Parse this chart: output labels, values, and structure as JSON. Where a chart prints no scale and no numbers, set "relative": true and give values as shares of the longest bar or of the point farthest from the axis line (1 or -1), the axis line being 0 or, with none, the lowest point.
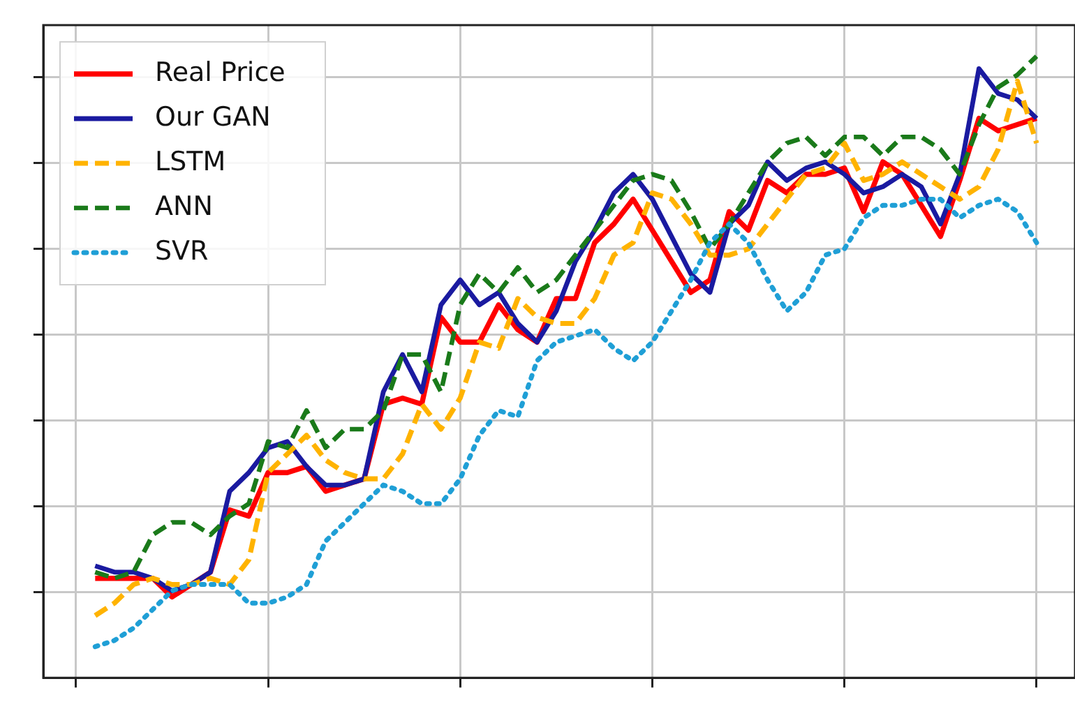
{
  "chart_data": {
    "type": "line",
    "relative": true,
    "grid": true,
    "legend": "top left",
    "marker": "none",
    "categories": [
      null,
      null,
      null,
      null,
      null,
      null,
      null,
      null,
      null,
      null,
      null,
      null,
      null,
      null,
      null,
      null,
      null,
      null,
      null,
      null,
      null,
      null,
      null,
      null,
      null,
      null,
      null,
      null,
      null,
      null,
      null,
      null,
      null,
      null,
      null,
      null,
      null,
      null,
      null,
      null,
      null,
      null,
      null,
      null,
      null,
      null,
      null,
      null,
      null,
      null
    ],
    "series": [
      {
        "name": "Real Price",
        "color": "#ff0000",
        "line_style": "solid",
        "values": [
          0.16,
          0.16,
          0.16,
          0.16,
          0.13,
          0.15,
          0.17,
          0.27,
          0.26,
          0.33,
          0.33,
          0.34,
          0.3,
          0.31,
          0.32,
          0.44,
          0.45,
          0.44,
          0.58,
          0.54,
          0.54,
          0.6,
          0.56,
          0.54,
          0.61,
          0.61,
          0.7,
          0.73,
          0.77,
          0.72,
          0.67,
          0.62,
          0.64,
          0.75,
          0.72,
          0.8,
          0.78,
          0.81,
          0.81,
          0.82,
          0.75,
          0.83,
          0.81,
          0.76,
          0.71,
          0.8,
          0.9,
          0.88,
          0.89,
          0.9
        ]
      },
      {
        "name": "Our GAN",
        "color": "#1a1aa0",
        "line_style": "solid",
        "values": [
          0.18,
          0.17,
          0.17,
          0.16,
          0.14,
          0.15,
          0.17,
          0.3,
          0.33,
          0.37,
          0.38,
          0.34,
          0.31,
          0.31,
          0.32,
          0.46,
          0.52,
          0.46,
          0.6,
          0.64,
          0.6,
          0.62,
          0.57,
          0.54,
          0.59,
          0.67,
          0.72,
          0.78,
          0.81,
          0.77,
          0.71,
          0.65,
          0.62,
          0.73,
          0.76,
          0.83,
          0.8,
          0.82,
          0.83,
          0.81,
          0.78,
          0.79,
          0.81,
          0.79,
          0.73,
          0.81,
          0.98,
          0.94,
          0.93,
          0.9
        ]
      },
      {
        "name": "LSTM",
        "color": "#ffb300",
        "line_style": "dashed",
        "values": [
          0.1,
          0.12,
          0.15,
          0.16,
          0.15,
          0.15,
          0.16,
          0.15,
          0.19,
          0.33,
          0.36,
          0.39,
          0.35,
          0.33,
          0.32,
          0.32,
          0.36,
          0.44,
          0.4,
          0.45,
          0.54,
          0.53,
          0.61,
          0.58,
          0.57,
          0.57,
          0.61,
          0.68,
          0.7,
          0.78,
          0.77,
          0.73,
          0.68,
          0.68,
          0.69,
          0.73,
          0.77,
          0.81,
          0.82,
          0.86,
          0.8,
          0.81,
          0.83,
          0.81,
          0.79,
          0.77,
          0.79,
          0.85,
          0.96,
          0.86
        ]
      },
      {
        "name": "ANN",
        "color": "#1a7a1a",
        "line_style": "dashed",
        "values": [
          0.17,
          0.16,
          0.17,
          0.23,
          0.25,
          0.25,
          0.23,
          0.26,
          0.28,
          0.38,
          0.37,
          0.43,
          0.37,
          0.4,
          0.4,
          0.43,
          0.52,
          0.52,
          0.46,
          0.6,
          0.65,
          0.62,
          0.66,
          0.62,
          0.64,
          0.68,
          0.72,
          0.76,
          0.8,
          0.81,
          0.8,
          0.75,
          0.69,
          0.73,
          0.78,
          0.83,
          0.86,
          0.87,
          0.84,
          0.87,
          0.87,
          0.84,
          0.87,
          0.87,
          0.85,
          0.81,
          0.89,
          0.95,
          0.97,
          1.0
        ]
      },
      {
        "name": "SVR",
        "color": "#1f9fd6",
        "line_style": "dotted",
        "values": [
          0.05,
          0.06,
          0.08,
          0.11,
          0.14,
          0.15,
          0.15,
          0.15,
          0.12,
          0.12,
          0.13,
          0.15,
          0.22,
          0.25,
          0.28,
          0.31,
          0.3,
          0.28,
          0.28,
          0.32,
          0.39,
          0.43,
          0.42,
          0.51,
          0.54,
          0.55,
          0.56,
          0.53,
          0.51,
          0.54,
          0.59,
          0.64,
          0.7,
          0.73,
          0.7,
          0.64,
          0.59,
          0.62,
          0.68,
          0.69,
          0.74,
          0.76,
          0.76,
          0.77,
          0.77,
          0.74,
          0.76,
          0.77,
          0.75,
          0.7
        ]
      }
    ]
  }
}
